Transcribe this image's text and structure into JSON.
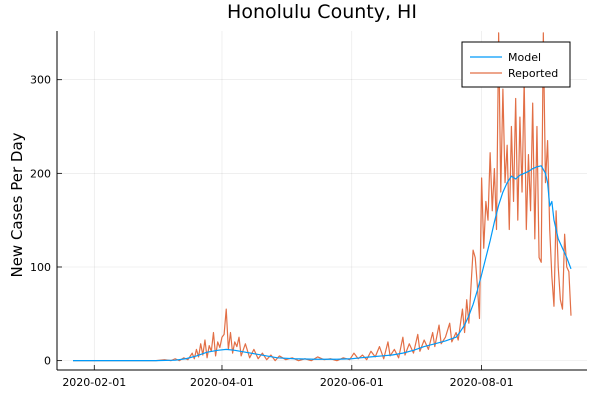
{
  "chart_data": {
    "type": "line",
    "title": "Honolulu County, HI",
    "xlabel": "",
    "ylabel": "New Cases Per Day",
    "x_range": [
      "2020-01-22",
      "2020-09-12"
    ],
    "ylim": [
      -10,
      352
    ],
    "x_ticks": [
      "2020-02-01",
      "2020-04-01",
      "2020-06-01",
      "2020-08-01"
    ],
    "y_ticks": [
      0,
      100,
      200,
      300
    ],
    "grid": true,
    "legend_position": "top-right",
    "series": [
      {
        "name": "Model",
        "color": "#009af9",
        "points": [
          [
            "2020-01-22",
            0
          ],
          [
            "2020-03-01",
            0
          ],
          [
            "2020-03-10",
            0.5
          ],
          [
            "2020-03-15",
            2
          ],
          [
            "2020-03-20",
            5
          ],
          [
            "2020-03-25",
            9
          ],
          [
            "2020-03-30",
            11
          ],
          [
            "2020-04-03",
            12
          ],
          [
            "2020-04-07",
            11
          ],
          [
            "2020-04-12",
            9
          ],
          [
            "2020-04-17",
            7
          ],
          [
            "2020-04-22",
            5
          ],
          [
            "2020-04-27",
            3
          ],
          [
            "2020-05-05",
            2
          ],
          [
            "2020-05-15",
            1.5
          ],
          [
            "2020-05-25",
            1.5
          ],
          [
            "2020-06-01",
            2
          ],
          [
            "2020-06-05",
            3
          ],
          [
            "2020-06-10",
            4
          ],
          [
            "2020-06-15",
            5
          ],
          [
            "2020-06-20",
            6
          ],
          [
            "2020-06-25",
            8
          ],
          [
            "2020-06-30",
            11
          ],
          [
            "2020-07-05",
            15
          ],
          [
            "2020-07-10",
            18
          ],
          [
            "2020-07-15",
            21
          ],
          [
            "2020-07-20",
            25
          ],
          [
            "2020-07-22",
            31
          ],
          [
            "2020-07-24",
            38
          ],
          [
            "2020-07-26",
            48
          ],
          [
            "2020-07-28",
            60
          ],
          [
            "2020-07-30",
            75
          ],
          [
            "2020-08-01",
            92
          ],
          [
            "2020-08-03",
            110
          ],
          [
            "2020-08-05",
            128
          ],
          [
            "2020-08-07",
            148
          ],
          [
            "2020-08-09",
            166
          ],
          [
            "2020-08-11",
            180
          ],
          [
            "2020-08-13",
            190
          ],
          [
            "2020-08-15",
            197
          ],
          [
            "2020-08-17",
            194
          ],
          [
            "2020-08-19",
            198
          ],
          [
            "2020-08-21",
            200
          ],
          [
            "2020-08-23",
            202
          ],
          [
            "2020-08-25",
            205
          ],
          [
            "2020-08-27",
            207
          ],
          [
            "2020-08-29",
            208
          ],
          [
            "2020-08-31",
            200
          ],
          [
            "2020-09-01",
            190
          ],
          [
            "2020-09-02",
            165
          ],
          [
            "2020-09-03",
            170
          ],
          [
            "2020-09-04",
            150
          ],
          [
            "2020-09-06",
            130
          ],
          [
            "2020-09-08",
            120
          ],
          [
            "2020-09-10",
            110
          ],
          [
            "2020-09-12",
            98
          ]
        ]
      },
      {
        "name": "Reported",
        "color": "#e26f46",
        "points": [
          [
            "2020-01-22",
            0
          ],
          [
            "2020-03-01",
            0
          ],
          [
            "2020-03-05",
            1
          ],
          [
            "2020-03-08",
            0
          ],
          [
            "2020-03-10",
            2
          ],
          [
            "2020-03-12",
            0
          ],
          [
            "2020-03-14",
            3
          ],
          [
            "2020-03-16",
            1
          ],
          [
            "2020-03-18",
            8
          ],
          [
            "2020-03-19",
            2
          ],
          [
            "2020-03-20",
            12
          ],
          [
            "2020-03-21",
            4
          ],
          [
            "2020-03-22",
            18
          ],
          [
            "2020-03-23",
            6
          ],
          [
            "2020-03-24",
            22
          ],
          [
            "2020-03-25",
            3
          ],
          [
            "2020-03-26",
            16
          ],
          [
            "2020-03-27",
            10
          ],
          [
            "2020-03-28",
            30
          ],
          [
            "2020-03-29",
            5
          ],
          [
            "2020-03-30",
            20
          ],
          [
            "2020-03-31",
            14
          ],
          [
            "2020-04-01",
            25
          ],
          [
            "2020-04-02",
            28
          ],
          [
            "2020-04-03",
            55
          ],
          [
            "2020-04-04",
            12
          ],
          [
            "2020-04-05",
            30
          ],
          [
            "2020-04-06",
            8
          ],
          [
            "2020-04-07",
            20
          ],
          [
            "2020-04-08",
            15
          ],
          [
            "2020-04-09",
            25
          ],
          [
            "2020-04-10",
            5
          ],
          [
            "2020-04-12",
            18
          ],
          [
            "2020-04-14",
            3
          ],
          [
            "2020-04-16",
            12
          ],
          [
            "2020-04-18",
            2
          ],
          [
            "2020-04-20",
            8
          ],
          [
            "2020-04-22",
            1
          ],
          [
            "2020-04-24",
            6
          ],
          [
            "2020-04-26",
            0
          ],
          [
            "2020-04-28",
            5
          ],
          [
            "2020-05-01",
            1
          ],
          [
            "2020-05-04",
            3
          ],
          [
            "2020-05-07",
            0
          ],
          [
            "2020-05-10",
            2
          ],
          [
            "2020-05-13",
            0
          ],
          [
            "2020-05-16",
            4
          ],
          [
            "2020-05-19",
            1
          ],
          [
            "2020-05-22",
            2
          ],
          [
            "2020-05-25",
            0
          ],
          [
            "2020-05-28",
            3
          ],
          [
            "2020-05-31",
            1
          ],
          [
            "2020-06-02",
            8
          ],
          [
            "2020-06-04",
            2
          ],
          [
            "2020-06-06",
            6
          ],
          [
            "2020-06-08",
            1
          ],
          [
            "2020-06-10",
            10
          ],
          [
            "2020-06-12",
            4
          ],
          [
            "2020-06-14",
            15
          ],
          [
            "2020-06-16",
            2
          ],
          [
            "2020-06-18",
            20
          ],
          [
            "2020-06-19",
            5
          ],
          [
            "2020-06-21",
            12
          ],
          [
            "2020-06-23",
            3
          ],
          [
            "2020-06-25",
            25
          ],
          [
            "2020-06-26",
            6
          ],
          [
            "2020-06-28",
            18
          ],
          [
            "2020-06-30",
            8
          ],
          [
            "2020-07-02",
            28
          ],
          [
            "2020-07-03",
            10
          ],
          [
            "2020-07-05",
            22
          ],
          [
            "2020-07-07",
            12
          ],
          [
            "2020-07-09",
            30
          ],
          [
            "2020-07-10",
            15
          ],
          [
            "2020-07-12",
            38
          ],
          [
            "2020-07-13",
            18
          ],
          [
            "2020-07-15",
            25
          ],
          [
            "2020-07-17",
            40
          ],
          [
            "2020-07-18",
            20
          ],
          [
            "2020-07-20",
            30
          ],
          [
            "2020-07-21",
            22
          ],
          [
            "2020-07-23",
            55
          ],
          [
            "2020-07-24",
            30
          ],
          [
            "2020-07-25",
            65
          ],
          [
            "2020-07-26",
            40
          ],
          [
            "2020-07-28",
            118
          ],
          [
            "2020-07-29",
            110
          ],
          [
            "2020-07-30",
            80
          ],
          [
            "2020-07-31",
            45
          ],
          [
            "2020-08-01",
            195
          ],
          [
            "2020-08-02",
            120
          ],
          [
            "2020-08-03",
            170
          ],
          [
            "2020-08-04",
            150
          ],
          [
            "2020-08-05",
            222
          ],
          [
            "2020-08-06",
            160
          ],
          [
            "2020-08-07",
            205
          ],
          [
            "2020-08-08",
            140
          ],
          [
            "2020-08-09",
            350
          ],
          [
            "2020-08-10",
            180
          ],
          [
            "2020-08-11",
            290
          ],
          [
            "2020-08-12",
            190
          ],
          [
            "2020-08-13",
            230
          ],
          [
            "2020-08-14",
            140
          ],
          [
            "2020-08-15",
            250
          ],
          [
            "2020-08-16",
            170
          ],
          [
            "2020-08-17",
            280
          ],
          [
            "2020-08-18",
            150
          ],
          [
            "2020-08-19",
            260
          ],
          [
            "2020-08-20",
            180
          ],
          [
            "2020-08-21",
            300
          ],
          [
            "2020-08-22",
            140
          ],
          [
            "2020-08-23",
            220
          ],
          [
            "2020-08-24",
            160
          ],
          [
            "2020-08-25",
            275
          ],
          [
            "2020-08-26",
            130
          ],
          [
            "2020-08-27",
            250
          ],
          [
            "2020-08-28",
            110
          ],
          [
            "2020-08-29",
            105
          ],
          [
            "2020-08-30",
            350
          ],
          [
            "2020-08-31",
            190
          ],
          [
            "2020-09-01",
            235
          ],
          [
            "2020-09-02",
            140
          ],
          [
            "2020-09-03",
            90
          ],
          [
            "2020-09-04",
            58
          ],
          [
            "2020-09-05",
            160
          ],
          [
            "2020-09-06",
            100
          ],
          [
            "2020-09-07",
            65
          ],
          [
            "2020-09-08",
            55
          ],
          [
            "2020-09-09",
            135
          ],
          [
            "2020-09-10",
            100
          ],
          [
            "2020-09-11",
            95
          ],
          [
            "2020-09-12",
            48
          ]
        ]
      }
    ]
  }
}
